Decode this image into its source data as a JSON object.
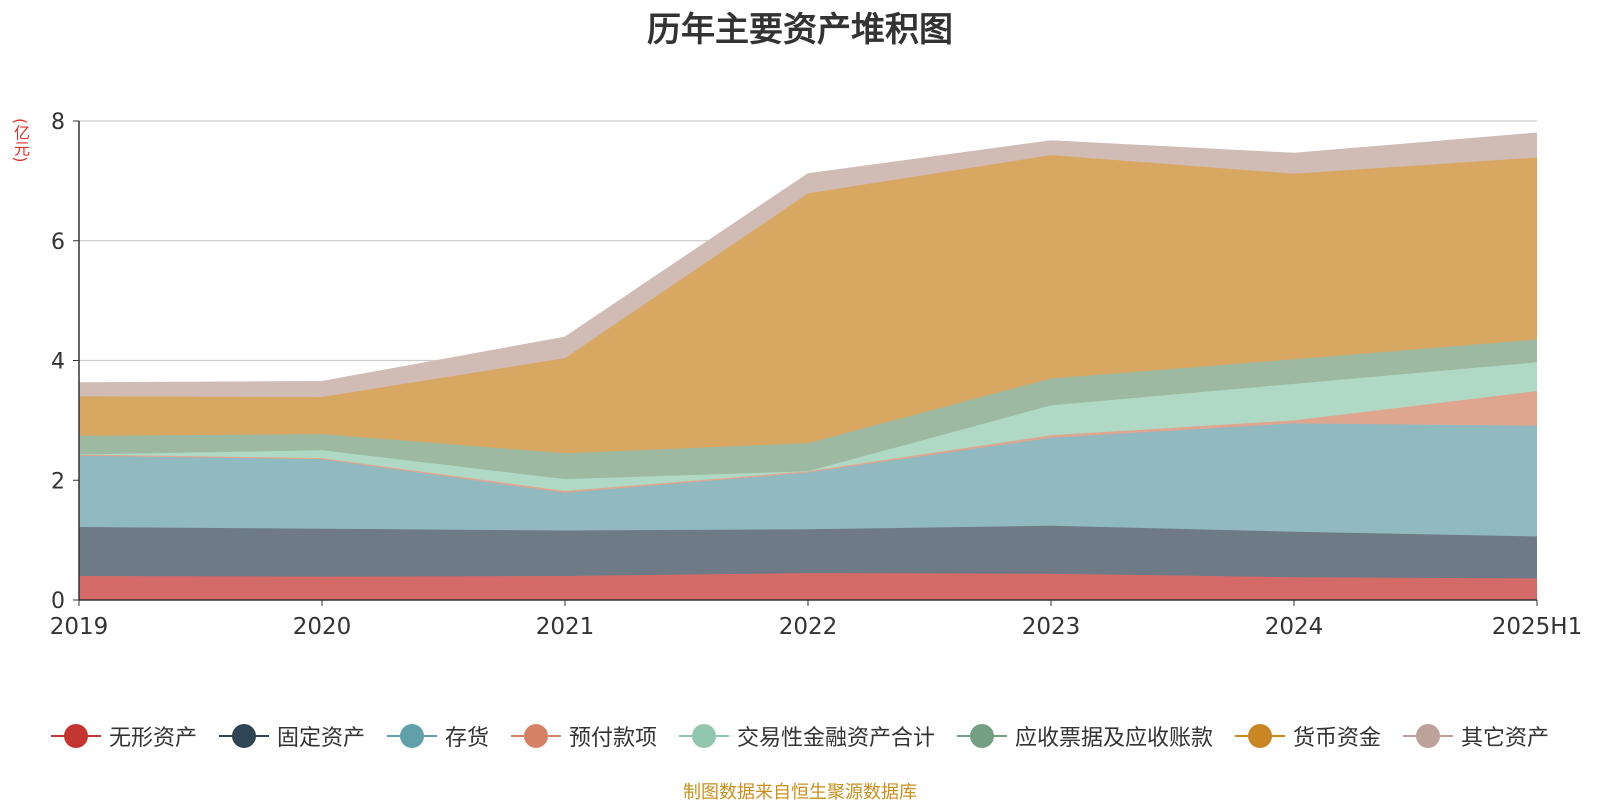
{
  "page": {
    "title": "历年主要资产堆积图",
    "unit_label": "(亿元)",
    "source_note": "制图数据来自恒生聚源数据库"
  },
  "chart_data": {
    "type": "area",
    "stacked": true,
    "title": "历年主要资产堆积图",
    "ylabel": "(亿元)",
    "xlabel": "",
    "x": [
      "2019",
      "2020",
      "2021",
      "2022",
      "2023",
      "2024",
      "2025H1"
    ],
    "ylim": [
      0,
      8
    ],
    "yticks": [
      0,
      2,
      4,
      6,
      8
    ],
    "grid": true,
    "legend_position": "bottom",
    "series": [
      {
        "name": "无形资产",
        "color": "#c23531",
        "area_color": "#d46a68",
        "values": [
          0.4,
          0.39,
          0.4,
          0.45,
          0.44,
          0.38,
          0.36
        ]
      },
      {
        "name": "固定资产",
        "color": "#2f4554",
        "area_color": "#6e7b86",
        "values": [
          0.82,
          0.8,
          0.76,
          0.73,
          0.8,
          0.76,
          0.7
        ]
      },
      {
        "name": "存货",
        "color": "#61a0a8",
        "area_color": "#91b9c0",
        "values": [
          1.19,
          1.16,
          0.63,
          0.95,
          1.47,
          1.81,
          1.85
        ]
      },
      {
        "name": "预付款项",
        "color": "#d48265",
        "area_color": "#dfa68f",
        "values": [
          0.02,
          0.02,
          0.03,
          0.02,
          0.04,
          0.05,
          0.58
        ]
      },
      {
        "name": "交易性金融资产合计",
        "color": "#91c7ae",
        "area_color": "#b0d9c5",
        "values": [
          0.0,
          0.13,
          0.2,
          0.0,
          0.5,
          0.61,
          0.48
        ]
      },
      {
        "name": "应收票据及应收账款",
        "color": "#749f83",
        "area_color": "#9db9a2",
        "values": [
          0.31,
          0.27,
          0.43,
          0.47,
          0.45,
          0.41,
          0.38
        ]
      },
      {
        "name": "货币资金",
        "color": "#ca8622",
        "area_color": "#d8a862",
        "values": [
          0.66,
          0.62,
          1.59,
          4.17,
          3.73,
          3.1,
          3.04
        ]
      },
      {
        "name": "其它资产",
        "color": "#bda29a",
        "area_color": "#d0bbb5",
        "values": [
          0.23,
          0.26,
          0.35,
          0.33,
          0.24,
          0.34,
          0.41
        ]
      }
    ]
  }
}
